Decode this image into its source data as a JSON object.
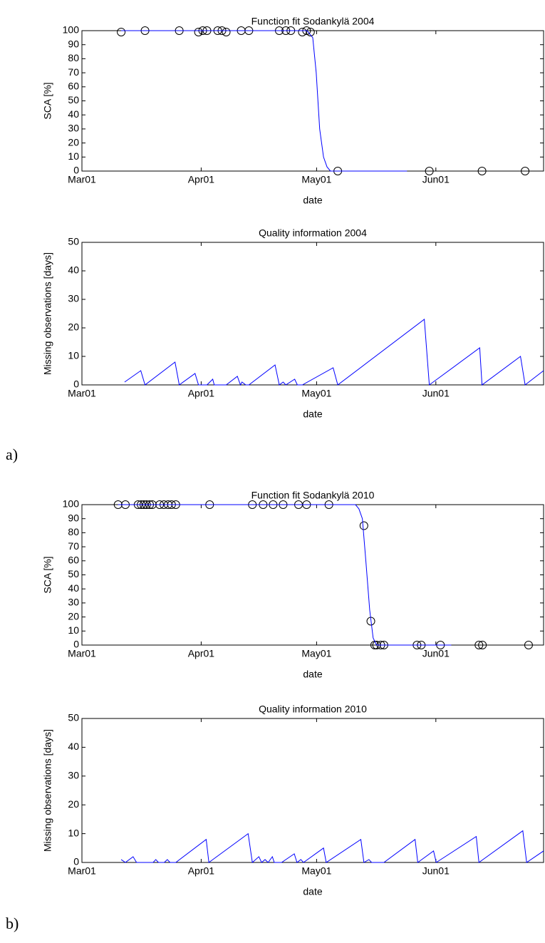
{
  "chart_data": [
    {
      "type": "line",
      "title": "Function fit Sodankylä 2004",
      "xlabel": "date",
      "ylabel": "SCA [%]",
      "xlim": [
        0,
        120
      ],
      "xticks": [
        {
          "value": 0,
          "label": "Mar01"
        },
        {
          "value": 31,
          "label": "Apr01"
        },
        {
          "value": 61,
          "label": "May01"
        },
        {
          "value": 92,
          "label": "Jun01"
        }
      ],
      "ylim": [
        0,
        100
      ],
      "yticks": [
        0,
        10,
        20,
        30,
        40,
        50,
        60,
        70,
        80,
        90,
        100
      ],
      "series": [
        {
          "type": "scatter",
          "color": "#000000",
          "x": [
            10.2,
            16.4,
            25.3,
            30.3,
            31.4,
            32.5,
            35.3,
            36.4,
            37.5,
            41.4,
            43.4,
            51.3,
            53.0,
            54.3,
            57.3,
            58.4,
            59.4,
            66.5,
            90.3,
            104.0,
            115.2
          ],
          "values": [
            99,
            100,
            100,
            99,
            100,
            100,
            100,
            100,
            99,
            100,
            100,
            100,
            100,
            100,
            99,
            100,
            99,
            0,
            0,
            0,
            0
          ]
        },
        {
          "type": "line",
          "color": "#0000ff",
          "x": [
            10.2,
            58.5,
            60.0,
            60.9,
            61.8,
            62.8,
            63.7,
            64.6,
            84.5
          ],
          "values": [
            100,
            100,
            95,
            70,
            30,
            10,
            3,
            0,
            0
          ]
        }
      ]
    },
    {
      "type": "line",
      "title": "Quality information 2004",
      "xlabel": "date",
      "ylabel": "Missing observations [days]",
      "xlim": [
        0,
        120
      ],
      "xticks": [
        {
          "value": 0,
          "label": "Mar01"
        },
        {
          "value": 31,
          "label": "Apr01"
        },
        {
          "value": 61,
          "label": "May01"
        },
        {
          "value": 92,
          "label": "Jun01"
        }
      ],
      "ylim": [
        0,
        50
      ],
      "yticks": [
        0,
        10,
        20,
        30,
        40,
        50
      ],
      "series": [
        {
          "type": "line",
          "color": "#0000ff",
          "x": [
            11.1,
            15.3,
            16.4,
            24.2,
            25.3,
            29.4,
            30.3,
            32.5,
            34.0,
            34.4,
            37.5,
            40.4,
            41.2,
            41.6,
            42.6,
            43.4,
            50.2,
            51.3,
            52.3,
            53.0,
            55.3,
            56.0,
            57.3,
            65.3,
            66.5,
            89.0,
            90.3,
            103.4,
            104.0,
            114.0,
            115.2,
            120
          ],
          "values": [
            1,
            5,
            0,
            8,
            0,
            4,
            0,
            0,
            2,
            0,
            0,
            3,
            0,
            1,
            0,
            0,
            7,
            0,
            1,
            0,
            2,
            0,
            0,
            6,
            0,
            23,
            0,
            13,
            0,
            10,
            0,
            5
          ]
        }
      ]
    },
    {
      "type": "line",
      "title": "Function fit Sodankylä 2010",
      "xlabel": "date",
      "ylabel": "SCA [%]",
      "xlim": [
        0,
        120
      ],
      "xticks": [
        {
          "value": 0,
          "label": "Mar01"
        },
        {
          "value": 31,
          "label": "Apr01"
        },
        {
          "value": 61,
          "label": "May01"
        },
        {
          "value": 92,
          "label": "Jun01"
        }
      ],
      "ylim": [
        0,
        100
      ],
      "yticks": [
        0,
        10,
        20,
        30,
        40,
        50,
        60,
        70,
        80,
        90,
        100
      ],
      "series": [
        {
          "type": "scatter",
          "color": "#000000",
          "x": [
            9.4,
            11.3,
            14.6,
            15.4,
            16.1,
            16.8,
            17.6,
            18.3,
            20.2,
            21.3,
            22.4,
            23.3,
            24.4,
            33.2,
            44.3,
            47.1,
            49.7,
            52.3,
            56.3,
            58.4,
            64.2,
            73.3,
            75.1,
            76.1,
            76.6,
            77.7,
            78.5,
            87.1,
            88.2,
            93.2,
            103.2,
            104.1,
            116.1
          ],
          "values": [
            100,
            100,
            100,
            100,
            100,
            100,
            100,
            100,
            100,
            100,
            100,
            100,
            100,
            100,
            100,
            100,
            100,
            100,
            100,
            100,
            100,
            85,
            17,
            0,
            0,
            0,
            0,
            0,
            0,
            0,
            0,
            0,
            0
          ]
        },
        {
          "type": "line",
          "color": "#0000ff",
          "x": [
            9.4,
            71.1,
            72.0,
            72.9,
            73.8,
            74.8,
            75.7,
            76.6,
            96.0
          ],
          "values": [
            100,
            100,
            97,
            90,
            60,
            25,
            5,
            0,
            0
          ]
        }
      ]
    },
    {
      "type": "line",
      "title": "Quality information 2010",
      "xlabel": "date",
      "ylabel": "Missing observations [days]",
      "xlim": [
        0,
        120
      ],
      "xticks": [
        {
          "value": 0,
          "label": "Mar01"
        },
        {
          "value": 31,
          "label": "Apr01"
        },
        {
          "value": 61,
          "label": "May01"
        },
        {
          "value": 92,
          "label": "Jun01"
        }
      ],
      "ylim": [
        0,
        50
      ],
      "yticks": [
        0,
        10,
        20,
        30,
        40,
        50
      ],
      "series": [
        {
          "type": "line",
          "color": "#0000ff",
          "x": [
            10.2,
            11.3,
            13.3,
            14.2,
            18.5,
            19.2,
            19.9,
            21.4,
            22.2,
            22.9,
            24.4,
            32.3,
            33.0,
            43.2,
            44.3,
            46.0,
            46.7,
            47.6,
            48.4,
            49.5,
            50.0,
            51.9,
            55.2,
            55.9,
            56.9,
            57.6,
            62.8,
            63.5,
            72.5,
            73.3,
            74.6,
            75.3,
            78.5,
            86.6,
            87.3,
            91.4,
            92.1,
            102.5,
            103.2,
            114.6,
            115.6,
            120
          ],
          "values": [
            1,
            0,
            2,
            0,
            0,
            1,
            0,
            0,
            1,
            0,
            0,
            8,
            0,
            10,
            0,
            2,
            0,
            1,
            0,
            2,
            0,
            0,
            3,
            0,
            1,
            0,
            5,
            0,
            8,
            0,
            1,
            0,
            0,
            8,
            0,
            4,
            0,
            9,
            0,
            11,
            0,
            4
          ]
        }
      ]
    }
  ],
  "panel_labels": [
    "a)",
    "b)"
  ]
}
